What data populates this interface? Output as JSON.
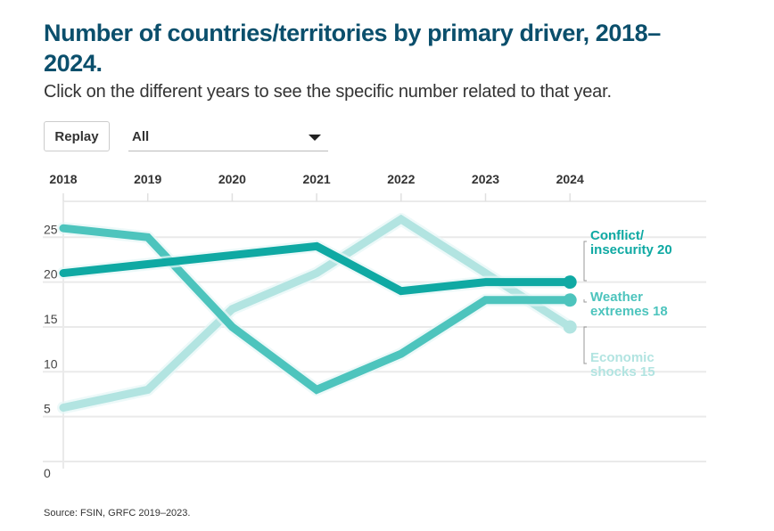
{
  "header": {
    "title": "Number of countries/territories by primary driver, 2018–2024.",
    "subtitle": "Click on the different years to see the specific number related to that year."
  },
  "controls": {
    "replay_label": "Replay",
    "select_value": "All"
  },
  "footer": {
    "source": "Source: FSIN, GRFC 2019–2023."
  },
  "colors": {
    "conflict": "#0fa9a3",
    "weather": "#4dc4bd",
    "economic": "#b2e4e1",
    "title": "#0b4f6c"
  },
  "chart_data": {
    "type": "line",
    "title": "Number of countries/territories by primary driver, 2018–2024.",
    "x": [
      "2018",
      "2019",
      "2020",
      "2021",
      "2022",
      "2023",
      "2024"
    ],
    "yticks": [
      0,
      5,
      10,
      15,
      20,
      25
    ],
    "ylim": [
      0,
      29
    ],
    "grid": true,
    "series": [
      {
        "name": "Conflict/ insecurity",
        "label_lines": [
          "Conflict/",
          "insecurity 20"
        ],
        "color": "#0fa9a3",
        "values": [
          21,
          22,
          23,
          24,
          19,
          20,
          20
        ]
      },
      {
        "name": "Weather extremes",
        "label_lines": [
          "Weather",
          "extremes 18"
        ],
        "color": "#4dc4bd",
        "values": [
          26,
          25,
          15,
          8,
          12,
          18,
          18
        ]
      },
      {
        "name": "Economic shocks",
        "label_lines": [
          "Economic",
          "shocks 15"
        ],
        "color": "#b2e4e1",
        "values": [
          6,
          8,
          17,
          21,
          27,
          21,
          15
        ]
      }
    ]
  }
}
